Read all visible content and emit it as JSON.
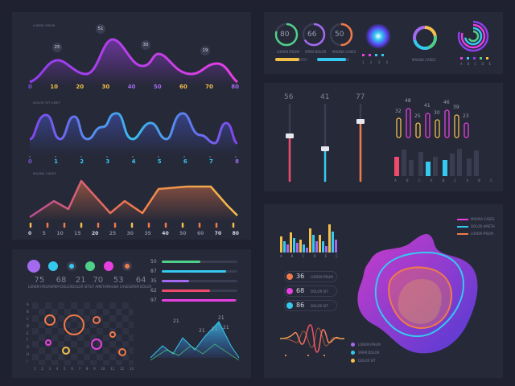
{
  "colors": {
    "magenta": "#e83fe3",
    "purple": "#8d3ff0",
    "cyan": "#35c9f0",
    "blue": "#3a7bf0",
    "orange": "#f07a4a",
    "yellow": "#f3c04a",
    "red": "#f04a6a",
    "green": "#4ed08a",
    "bg": "#1f2130",
    "panel": "#262938"
  },
  "panel1": {
    "chart1": {
      "label": "LOREM IPSUM",
      "peaks": [
        "25",
        "51",
        "30",
        "19"
      ],
      "axis": [
        "0",
        "10",
        "20",
        "30",
        "40",
        "50",
        "60",
        "70",
        "80"
      ]
    },
    "chart2": {
      "label": "DOLOR SIT AMET",
      "axis": [
        "0",
        "1",
        "2",
        "3",
        "4",
        "5",
        "6",
        "7",
        "8"
      ]
    },
    "chart3": {
      "label": "MAGNA CASES",
      "axis": [
        "0",
        "5",
        "10",
        "15",
        "20",
        "25",
        "30",
        "35",
        "40",
        "50",
        "60",
        "70",
        "80"
      ]
    }
  },
  "panel2": {
    "rings": [
      {
        "value": "80",
        "label": "LOREM IPSUM"
      },
      {
        "value": "66",
        "label": "SPEM DOLOR"
      },
      {
        "value": "50",
        "label": "MAGNA CASES"
      }
    ],
    "dots_axis": [
      "1",
      "2",
      "3",
      "4"
    ],
    "donut_label": "MAGNA CASES",
    "multi_axis": [
      "A",
      "B",
      "C",
      "D",
      "E"
    ]
  },
  "panel3": {
    "sliders": [
      "56",
      "41",
      "77"
    ],
    "bar_values": [
      "32",
      "48",
      "25",
      "41",
      "30",
      "46",
      "39",
      "23"
    ],
    "bar_axis": [
      "A",
      "B",
      "C",
      "A",
      "B",
      "C",
      "A",
      "B",
      "C"
    ]
  },
  "panel4": {
    "circles": [
      {
        "value": "75",
        "label": "LOREM IPSUM"
      },
      {
        "value": "68",
        "label": "SPEM DOLOR"
      },
      {
        "value": "21",
        "label": "DOLOR SIT"
      },
      {
        "value": "70",
        "label": "SIT AMETH"
      },
      {
        "value": "53",
        "label": "MAGNA CASES"
      },
      {
        "value": "64",
        "label": "SPEM DOLOR"
      }
    ],
    "grid_y": [
      "A",
      "B",
      "C",
      "D",
      "E",
      "F",
      "G",
      "H",
      "I"
    ],
    "grid_x": [
      "1",
      "2",
      "3",
      "4",
      "5",
      "6",
      "7",
      "8",
      "9",
      "10",
      "11",
      "12",
      "13"
    ],
    "hbars": [
      "50",
      "87",
      "35",
      "62",
      "97"
    ],
    "mountain_peaks": [
      "21",
      "21",
      "21",
      "21",
      "21"
    ]
  },
  "panel5": {
    "eq_axis": [
      "A",
      "B",
      "C",
      "D",
      "E",
      "C"
    ],
    "pills": [
      {
        "value": "36",
        "label": "LOREM IPSUM"
      },
      {
        "value": "68",
        "label": "DOLOR SIT"
      },
      {
        "value": "86",
        "label": "DOLOR SIT"
      }
    ],
    "legend_top": [
      "MAGNA CASES",
      "DOLOR AMETH",
      "LOREM IPSUM"
    ],
    "legend_bottom": [
      "LOREM IPSUM",
      "SPEM DOLOR",
      "DOLOR SIT"
    ]
  }
}
